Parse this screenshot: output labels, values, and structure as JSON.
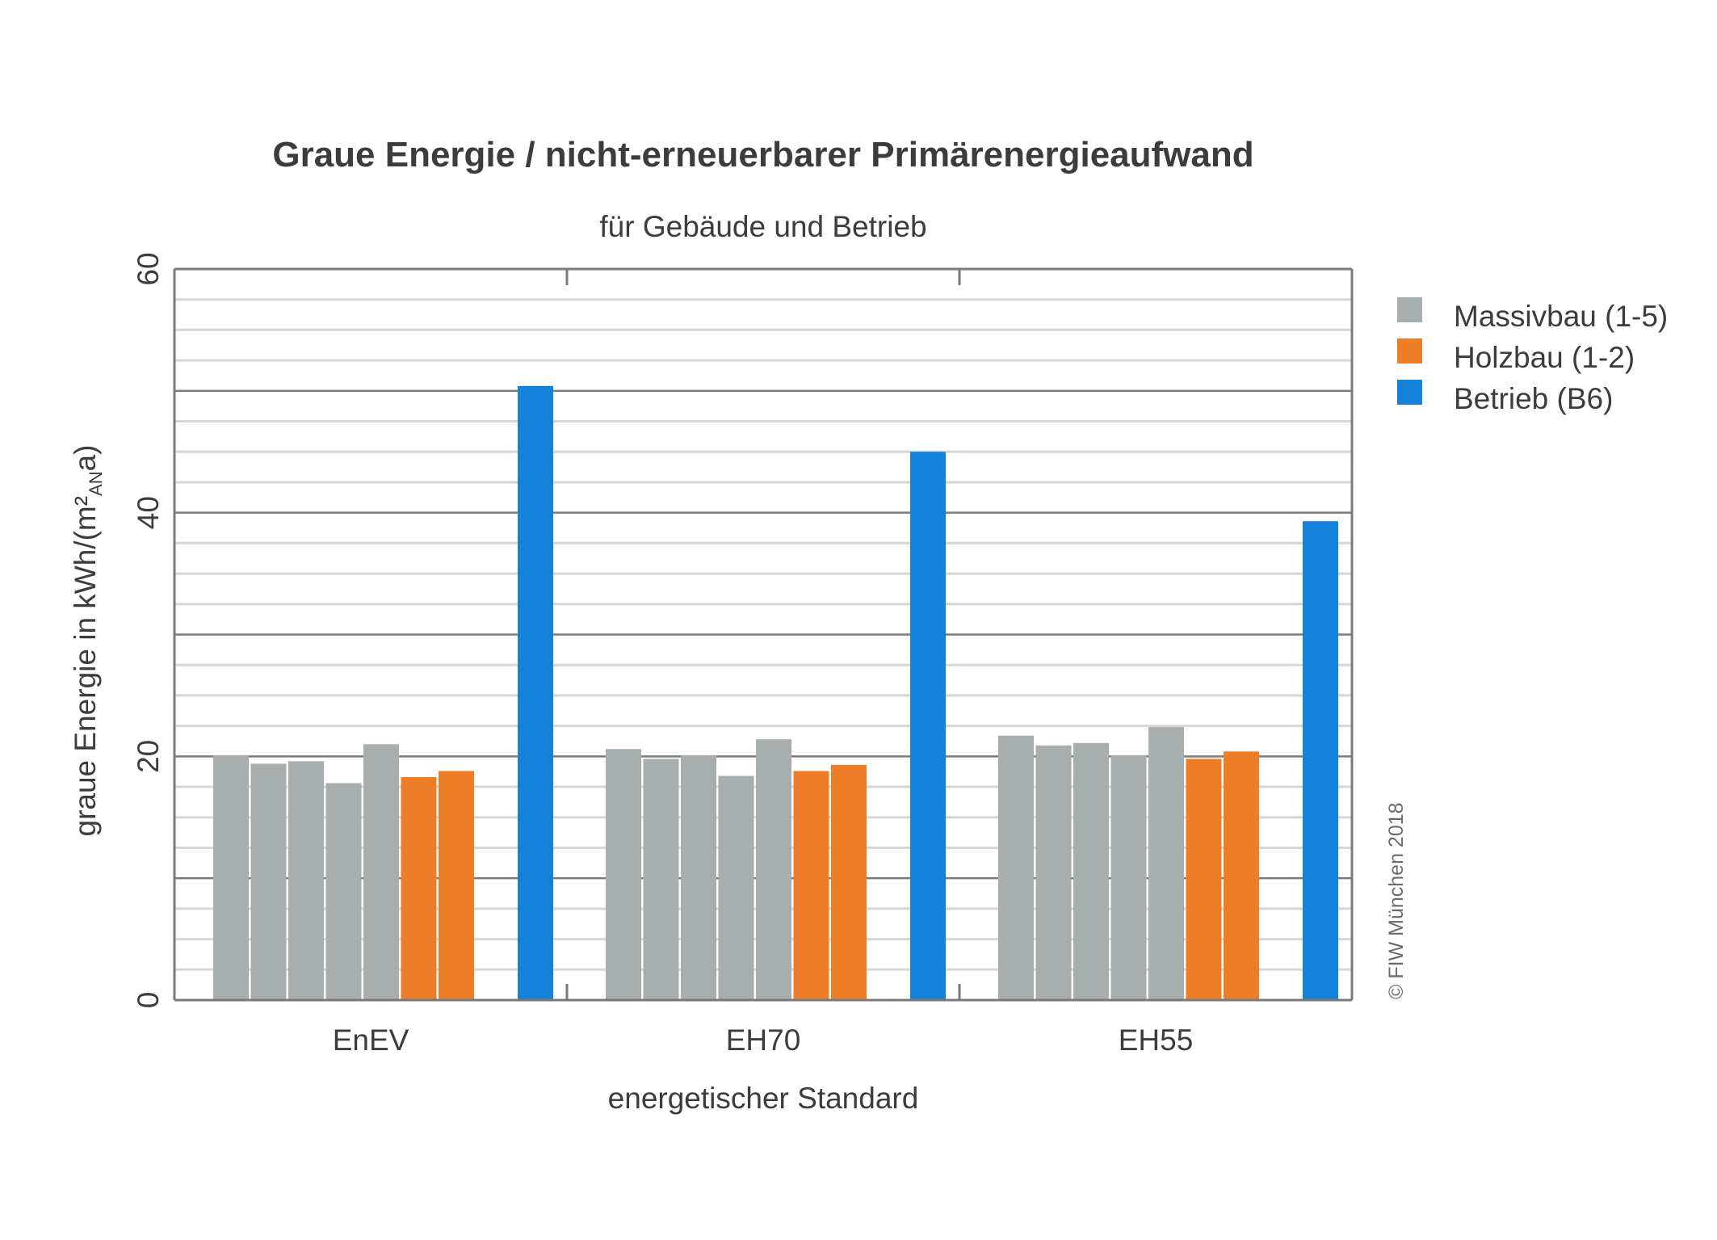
{
  "chart_data": {
    "type": "bar",
    "title": "Graue Energie / nicht-erneuerbarer Primärenergieaufwand",
    "subtitle": "für Gebäude und Betrieb",
    "xlabel": "energetischer Standard",
    "ylabel_main": "graue Energie in kWh/(m²",
    "ylabel_sub": "AN",
    "ylabel_end": "a)",
    "ylim": [
      0,
      60
    ],
    "y_ticks": [
      0,
      20,
      40,
      60
    ],
    "y_tick_labels": [
      "0",
      "20",
      "40",
      "60"
    ],
    "grid": true,
    "legend_position": "right",
    "categories": [
      "EnEV",
      "EH70",
      "EH55"
    ],
    "series": [
      {
        "name": "Massivbau (1-5)",
        "color": "#a8adad",
        "values": [
          [
            20.1,
            19.4,
            19.6,
            17.8,
            21.0
          ],
          [
            20.6,
            19.8,
            20.1,
            18.4,
            21.4
          ],
          [
            21.7,
            20.9,
            21.1,
            20.1,
            22.4
          ]
        ]
      },
      {
        "name": "Holzbau (1-2)",
        "color": "#ee7d27",
        "values": [
          [
            18.3,
            18.8
          ],
          [
            18.8,
            19.3
          ],
          [
            19.8,
            20.4
          ]
        ]
      },
      {
        "name": "Betrieb (B6)",
        "color": "#1482db",
        "values": [
          [
            50.4
          ],
          [
            45.0
          ],
          [
            39.3
          ]
        ]
      }
    ],
    "copyright": "© FIW München 2018"
  }
}
